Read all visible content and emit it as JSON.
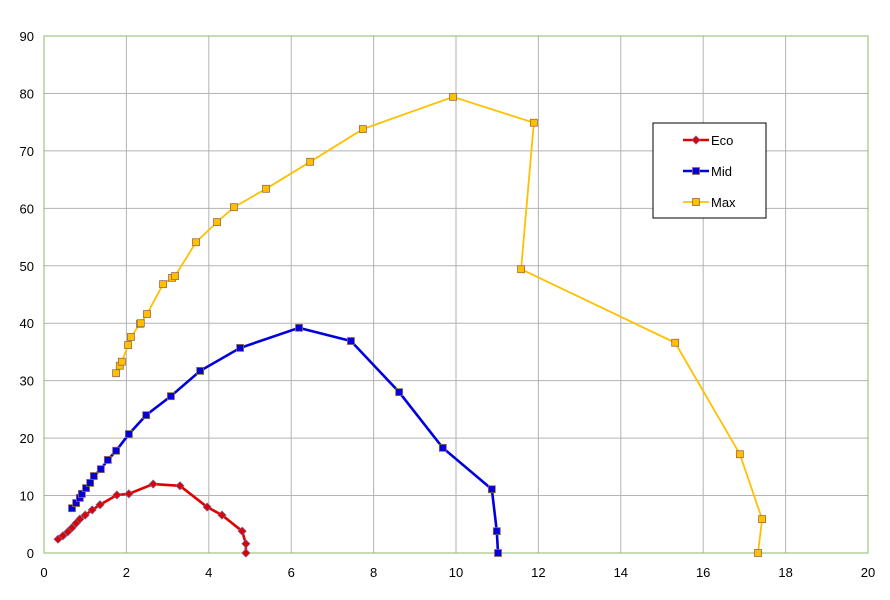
{
  "chart_data": {
    "type": "scatter",
    "xlim": [
      0,
      20
    ],
    "ylim": [
      0,
      90
    ],
    "xticks": [
      0,
      2,
      4,
      6,
      8,
      10,
      12,
      14,
      16,
      18,
      20
    ],
    "yticks": [
      0,
      10,
      20,
      30,
      40,
      50,
      60,
      70,
      80,
      90
    ],
    "grid": true,
    "legend": "upper right",
    "series": [
      {
        "name": "Eco",
        "color": "#e00000",
        "marker": "diamond",
        "x": [
          0.34,
          0.46,
          0.58,
          0.68,
          0.78,
          0.87,
          1.0,
          1.17,
          1.36,
          1.77,
          2.06,
          2.65,
          3.3,
          3.96,
          4.32,
          4.81,
          4.9,
          4.9
        ],
        "y": [
          2.4,
          3.0,
          3.7,
          4.4,
          5.2,
          5.9,
          6.6,
          7.5,
          8.4,
          10.1,
          10.3,
          12.0,
          11.7,
          8.0,
          6.6,
          3.8,
          1.6,
          0
        ]
      },
      {
        "name": "Mid",
        "color": "#0000dd",
        "marker": "square",
        "x": [
          0.68,
          0.78,
          0.87,
          0.92,
          1.02,
          1.12,
          1.21,
          1.38,
          1.55,
          1.75,
          2.06,
          2.48,
          3.08,
          3.79,
          4.76,
          6.19,
          7.45,
          8.62,
          9.68,
          10.87,
          10.99,
          11.02
        ],
        "y": [
          7.8,
          8.7,
          9.6,
          10.3,
          11.3,
          12.2,
          13.4,
          14.6,
          16.2,
          17.8,
          20.7,
          24.0,
          27.3,
          31.7,
          35.7,
          39.2,
          36.9,
          28.0,
          18.3,
          11.1,
          3.8,
          0
        ]
      },
      {
        "name": "Max",
        "color": "#ffc000",
        "marker": "square",
        "x": [
          1.75,
          1.84,
          1.89,
          2.04,
          2.11,
          2.33,
          2.35,
          2.5,
          2.89,
          3.11,
          3.18,
          3.69,
          4.2,
          4.61,
          5.39,
          6.46,
          7.74,
          9.93,
          11.89,
          11.58,
          15.32,
          16.89,
          17.43,
          17.33
        ],
        "y": [
          31.3,
          32.6,
          33.3,
          36.2,
          37.6,
          39.9,
          40.0,
          41.6,
          46.8,
          47.9,
          48.2,
          54.1,
          57.6,
          60.2,
          63.4,
          68.1,
          73.8,
          79.4,
          74.9,
          49.4,
          36.6,
          17.2,
          5.9,
          0
        ]
      }
    ]
  }
}
